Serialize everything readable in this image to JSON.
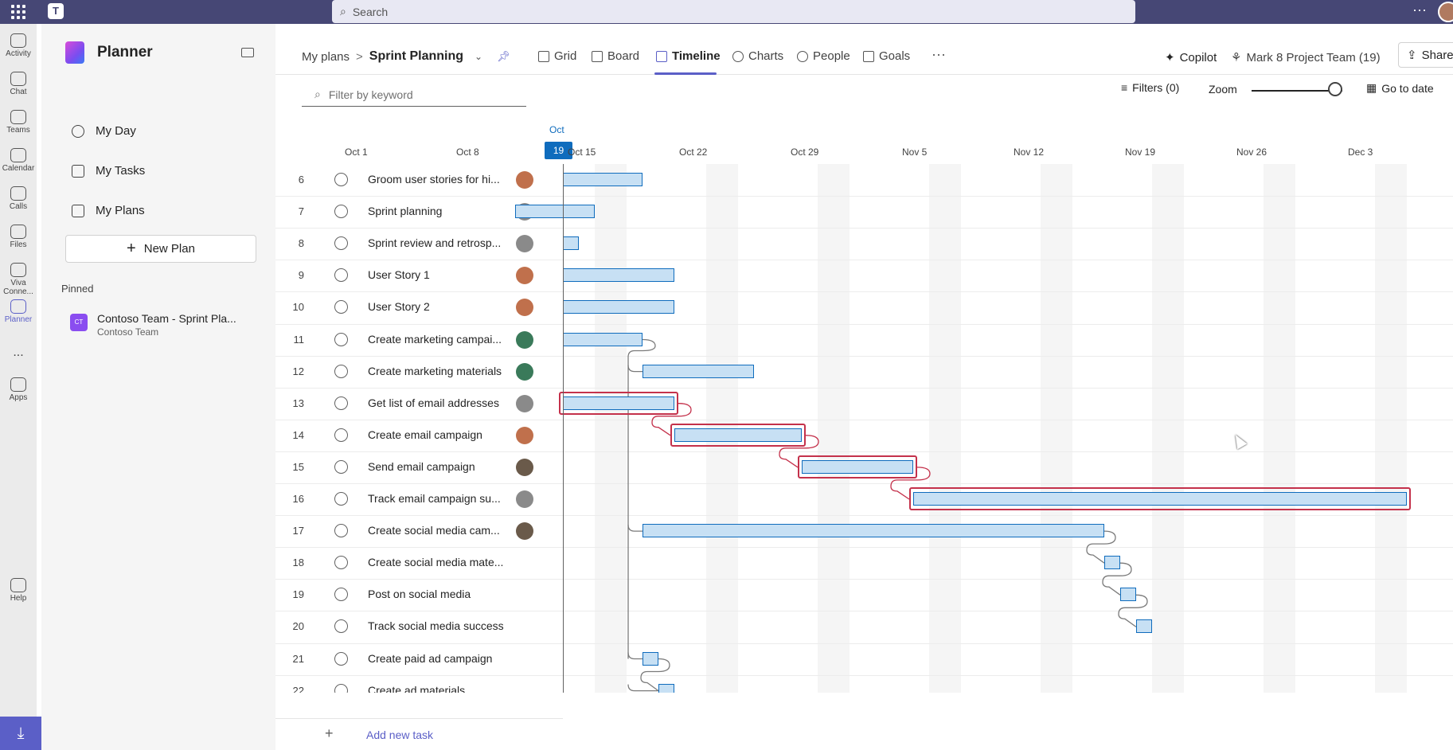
{
  "topbar": {
    "search_placeholder": "Search",
    "teams_logo": "T"
  },
  "rail": [
    {
      "label": "Activity",
      "icon": "bell-icon"
    },
    {
      "label": "Chat",
      "icon": "chat-icon"
    },
    {
      "label": "Teams",
      "icon": "teams-icon"
    },
    {
      "label": "Calendar",
      "icon": "calendar-icon"
    },
    {
      "label": "Calls",
      "icon": "phone-icon"
    },
    {
      "label": "Files",
      "icon": "file-icon"
    },
    {
      "label": "Viva Conne...",
      "icon": "viva-icon"
    },
    {
      "label": "Planner",
      "icon": "planner-icon"
    },
    {
      "label": "...",
      "icon": "more-icon"
    },
    {
      "label": "Apps",
      "icon": "apps-icon"
    },
    {
      "label": "Help",
      "icon": "help-icon"
    }
  ],
  "planner_nav": {
    "title": "Planner",
    "items": [
      {
        "label": "My Day",
        "icon": "sun-icon"
      },
      {
        "label": "My Tasks",
        "icon": "tasks-icon"
      },
      {
        "label": "My Plans",
        "icon": "grid-icon"
      }
    ],
    "new_plan": "New Plan",
    "pinned_label": "Pinned",
    "pinned_plan": {
      "title": "Contoso Team - Sprint Pla...",
      "subtitle": "Contoso Team",
      "tile": "CT"
    }
  },
  "header": {
    "breadcrumb_root": "My plans",
    "plan_name": "Sprint Planning",
    "tabs": [
      {
        "label": "Grid",
        "icon": "grid-icon"
      },
      {
        "label": "Board",
        "icon": "board-icon"
      },
      {
        "label": "Timeline",
        "icon": "timeline-icon",
        "active": true
      },
      {
        "label": "Charts",
        "icon": "chart-icon"
      },
      {
        "label": "People",
        "icon": "people-icon"
      },
      {
        "label": "Goals",
        "icon": "trophy-icon"
      }
    ],
    "more": "···",
    "copilot": "Copilot",
    "team": "Mark 8 Project Team (19)",
    "share": "Share"
  },
  "toolbar": {
    "filter_placeholder": "Filter by keyword",
    "filters": "Filters (0)",
    "zoom": "Zoom",
    "zoom_level": 0.92,
    "goto_date": "Go to date"
  },
  "timeline": {
    "today_month": "Oct",
    "today_day": "19",
    "dates": [
      "Oct 1",
      "Oct 8",
      "Oct 15",
      "Oct 22",
      "Oct 29",
      "Nov 5",
      "Nov 12",
      "Nov 19",
      "Nov 26",
      "Dec 3"
    ]
  },
  "tasks": [
    {
      "num": "6",
      "title": "Groom user stories for hi...",
      "avatar": "#c0704c",
      "start": "Oct 19",
      "end": "Oct 23"
    },
    {
      "num": "7",
      "title": "Sprint planning",
      "avatar": "#8a8a8a",
      "start": "Oct 16",
      "end": "Oct 20"
    },
    {
      "num": "8",
      "title": "Sprint review and retrosp...",
      "avatar": "#8a8a8a",
      "start": "Oct 19",
      "end": "Oct 19"
    },
    {
      "num": "9",
      "title": "User Story 1",
      "avatar": "#c0704c",
      "start": "Oct 19",
      "end": "Oct 25"
    },
    {
      "num": "10",
      "title": "User Story 2",
      "avatar": "#c0704c",
      "start": "Oct 19",
      "end": "Oct 25"
    },
    {
      "num": "11",
      "title": "Create marketing campai...",
      "avatar": "#3a7a5a",
      "start": "Oct 19",
      "end": "Oct 23"
    },
    {
      "num": "12",
      "title": "Create marketing materials",
      "avatar": "#3a7a5a",
      "start": "Oct 24",
      "end": "Oct 30"
    },
    {
      "num": "13",
      "title": "Get list of email addresses",
      "avatar": "#8a8a8a",
      "start": "Oct 19",
      "end": "Oct 25"
    },
    {
      "num": "14",
      "title": "Create email campaign",
      "avatar": "#c0704c",
      "start": "Oct 26",
      "end": "Nov 2"
    },
    {
      "num": "15",
      "title": "Send email campaign",
      "avatar": "#6a5a4a",
      "start": "Nov 3",
      "end": "Nov 9"
    },
    {
      "num": "16",
      "title": "Track email campaign su...",
      "avatar": "#8a8a8a",
      "start": "Nov 10",
      "end": "Dec 10"
    },
    {
      "num": "17",
      "title": "Create social media cam...",
      "avatar": "#6a5a4a",
      "start": "Oct 24",
      "end": "Nov 21"
    },
    {
      "num": "18",
      "title": "Create social media mate...",
      "avatar": "",
      "start": "Nov 22",
      "end": "Nov 22"
    },
    {
      "num": "19",
      "title": "Post on social media",
      "avatar": "",
      "start": "Nov 23",
      "end": "Nov 23"
    },
    {
      "num": "20",
      "title": "Track social media success",
      "avatar": "",
      "start": "Nov 24",
      "end": "Nov 24"
    },
    {
      "num": "21",
      "title": "Create paid ad campaign",
      "avatar": "",
      "start": "Oct 24",
      "end": "Oct 24"
    },
    {
      "num": "22",
      "title": "Create ad materials",
      "avatar": "",
      "start": "Oct 25",
      "end": "Oct 25"
    }
  ],
  "add_task": "Add new task",
  "colors": {
    "accent": "#5b5fc7",
    "topbar": "#464775",
    "today": "#0f6cbd",
    "critical_path": "#c4314b",
    "bar_fill": "#c7e0f4"
  }
}
